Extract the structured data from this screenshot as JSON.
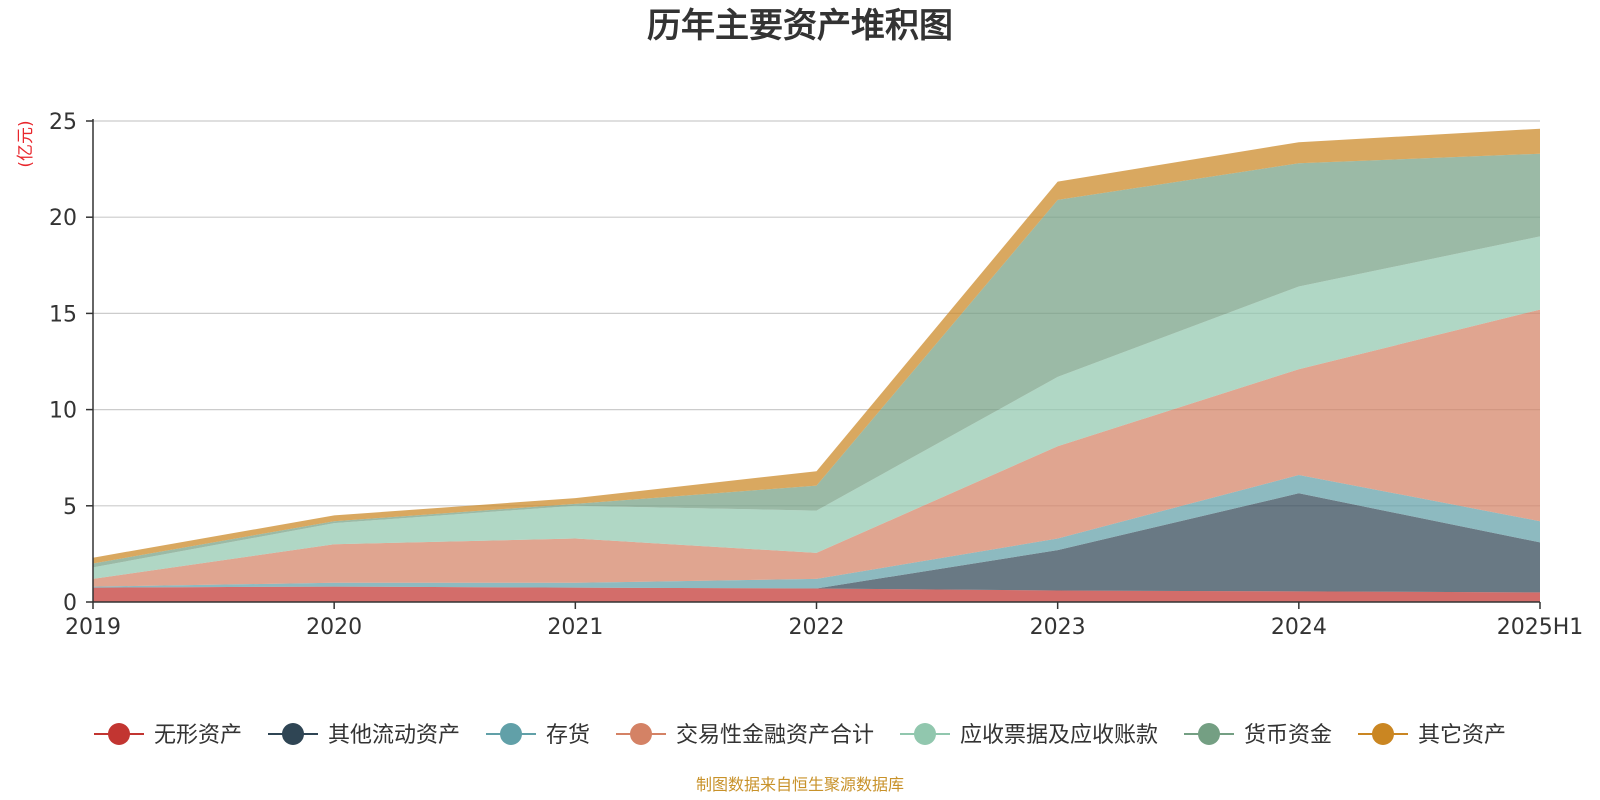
{
  "chart_data": {
    "type": "area",
    "stacked": true,
    "title": "历年主要资产堆积图",
    "ylabel": "(亿元)",
    "xlabel": "",
    "categories": [
      "2019",
      "2020",
      "2021",
      "2022",
      "2023",
      "2024",
      "2025H1"
    ],
    "ylim": [
      0,
      25
    ],
    "yticks": [
      0,
      5,
      10,
      15,
      20,
      25
    ],
    "grid": true,
    "legend_position": "bottom",
    "series": [
      {
        "name": "无形资产",
        "color": "#c23531",
        "values": [
          0.75,
          0.8,
          0.75,
          0.7,
          0.6,
          0.55,
          0.5
        ]
      },
      {
        "name": "其他流动资产",
        "color": "#2f4554",
        "values": [
          0.0,
          0.0,
          0.0,
          0.0,
          2.1,
          5.1,
          2.6
        ]
      },
      {
        "name": "存货",
        "color": "#61a0a8",
        "values": [
          0.05,
          0.2,
          0.25,
          0.5,
          0.6,
          0.95,
          1.1
        ]
      },
      {
        "name": "交易性金融资产合计",
        "color": "#d48265",
        "values": [
          0.4,
          2.0,
          2.3,
          1.35,
          4.8,
          5.5,
          11.0
        ]
      },
      {
        "name": "应收票据及应收账款",
        "color": "#91c7ae",
        "values": [
          0.6,
          1.1,
          1.7,
          2.2,
          3.6,
          4.3,
          3.8
        ]
      },
      {
        "name": "货币资金",
        "color": "#749f83",
        "values": [
          0.2,
          0.1,
          0.1,
          1.3,
          9.2,
          6.4,
          4.3
        ]
      },
      {
        "name": "其它资产",
        "color": "#ca8622",
        "values": [
          0.3,
          0.3,
          0.3,
          0.75,
          0.95,
          1.1,
          1.3
        ]
      }
    ],
    "source": "制图数据来自恒生聚源数据库"
  }
}
